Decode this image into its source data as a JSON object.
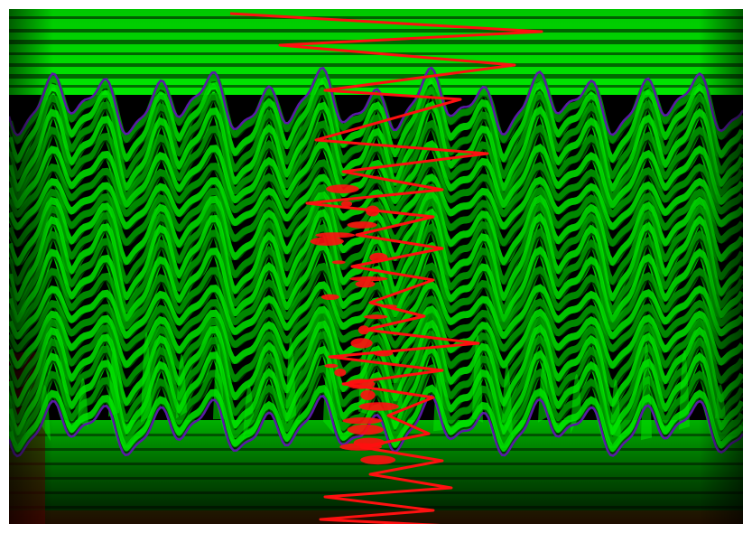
{
  "image": {
    "palette": {
      "background": "#000000",
      "bright_green": "#00e600",
      "mid_green": "#00a000",
      "dark_green": "#003a00",
      "red_trace": "#ff1010",
      "violet_edge": "#5a1aa8",
      "dark_red": "#5a0000"
    }
  }
}
